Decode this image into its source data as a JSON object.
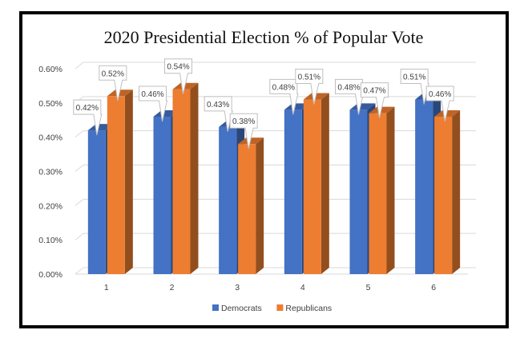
{
  "chart_data": {
    "type": "bar",
    "title": "2020 Presidential Election % of Popular Vote",
    "categories": [
      "1",
      "2",
      "3",
      "4",
      "5",
      "6"
    ],
    "series": [
      {
        "name": "Democrats",
        "values": [
          0.42,
          0.46,
          0.43,
          0.48,
          0.48,
          0.51
        ],
        "labels": [
          "0.42%",
          "0.46%",
          "0.43%",
          "0.48%",
          "0.48%",
          "0.51%"
        ]
      },
      {
        "name": "Republicans",
        "values": [
          0.52,
          0.54,
          0.38,
          0.51,
          0.47,
          0.46
        ],
        "labels": [
          "0.52%",
          "0.54%",
          "0.38%",
          "0.51%",
          "0.47%",
          "0.46%"
        ]
      }
    ],
    "yticks": [
      "0.00%",
      "0.10%",
      "0.20%",
      "0.30%",
      "0.40%",
      "0.50%",
      "0.60%"
    ],
    "ylim": [
      0,
      0.6
    ],
    "grid": true,
    "legend_position": "bottom",
    "colors": {
      "Democrats": "#4472c4",
      "Republicans": "#ed7d31"
    }
  }
}
